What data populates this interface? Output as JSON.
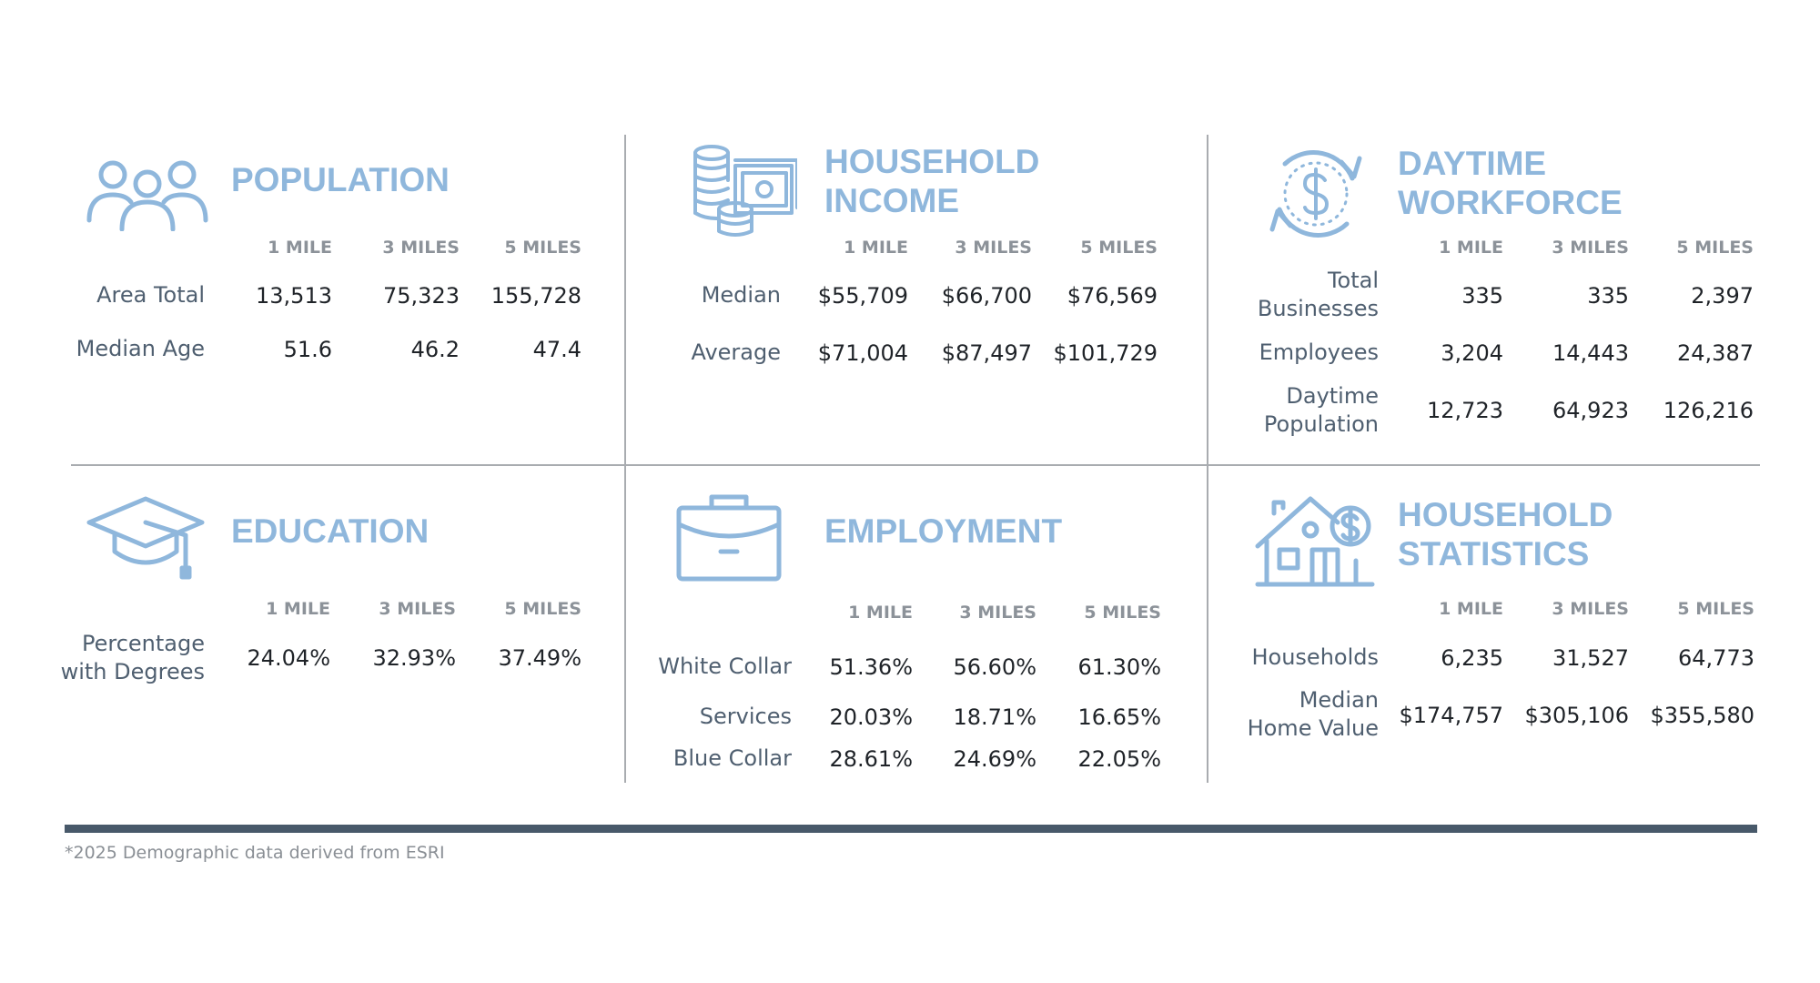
{
  "footnote": "*2025 Demographic data derived from ESRI",
  "colors": {
    "accent": "#8fb7dc",
    "label": "#4f5f70",
    "header": "#8c9299",
    "divider": "#a9acb0",
    "bar": "#48596a"
  },
  "population": {
    "icon": "people-icon",
    "title": [
      "POPULATION"
    ],
    "columns": [
      "1 MILE",
      "3 MILES",
      "5 MILES"
    ],
    "rows": [
      {
        "label": "Area Total",
        "values": [
          "13,513",
          "75,323",
          "155,728"
        ]
      },
      {
        "label": "Median Age",
        "values": [
          "51.6",
          "46.2",
          "47.4"
        ]
      }
    ]
  },
  "household_income": {
    "icon": "money-coins-icon",
    "title": [
      "HOUSEHOLD",
      "INCOME"
    ],
    "columns": [
      "1 MILE",
      "3 MILES",
      "5 MILES"
    ],
    "rows": [
      {
        "label": "Median",
        "values": [
          "$55,709",
          "$66,700",
          "$76,569"
        ]
      },
      {
        "label": "Average",
        "values": [
          "$71,004",
          "$87,497",
          "$101,729"
        ]
      }
    ]
  },
  "daytime_workforce": {
    "icon": "dollar-cycle-icon",
    "title": [
      "DAYTIME",
      "WORKFORCE"
    ],
    "columns": [
      "1 MILE",
      "3 MILES",
      "5 MILES"
    ],
    "rows": [
      {
        "label": [
          "Total",
          "Businesses"
        ],
        "values": [
          "335",
          "335",
          "2,397"
        ]
      },
      {
        "label": [
          "Employees"
        ],
        "values": [
          "3,204",
          "14,443",
          "24,387"
        ]
      },
      {
        "label": [
          "Daytime",
          "Population"
        ],
        "values": [
          "12,723",
          "64,923",
          "126,216"
        ]
      }
    ]
  },
  "education": {
    "icon": "graduation-cap-icon",
    "title": [
      "EDUCATION"
    ],
    "columns": [
      "1 MILE",
      "3 MILES",
      "5 MILES"
    ],
    "rows": [
      {
        "label": [
          "Percentage",
          "with Degrees"
        ],
        "values": [
          "24.04%",
          "32.93%",
          "37.49%"
        ]
      }
    ]
  },
  "employment": {
    "icon": "briefcase-icon",
    "title": [
      "EMPLOYMENT"
    ],
    "columns": [
      "1 MILE",
      "3 MILES",
      "5 MILES"
    ],
    "rows": [
      {
        "label": "White Collar",
        "values": [
          "51.36%",
          "56.60%",
          "61.30%"
        ]
      },
      {
        "label": "Services",
        "values": [
          "20.03%",
          "18.71%",
          "16.65%"
        ]
      },
      {
        "label": "Blue Collar",
        "values": [
          "28.61%",
          "24.69%",
          "22.05%"
        ]
      }
    ]
  },
  "household_statistics": {
    "icon": "house-dollar-icon",
    "title": [
      "HOUSEHOLD",
      "STATISTICS"
    ],
    "columns": [
      "1 MILE",
      "3 MILES",
      "5 MILES"
    ],
    "rows": [
      {
        "label": [
          "Households"
        ],
        "values": [
          "6,235",
          "31,527",
          "64,773"
        ]
      },
      {
        "label": [
          "Median",
          "Home Value"
        ],
        "values": [
          "$174,757",
          "$305,106",
          "$355,580"
        ]
      }
    ]
  }
}
